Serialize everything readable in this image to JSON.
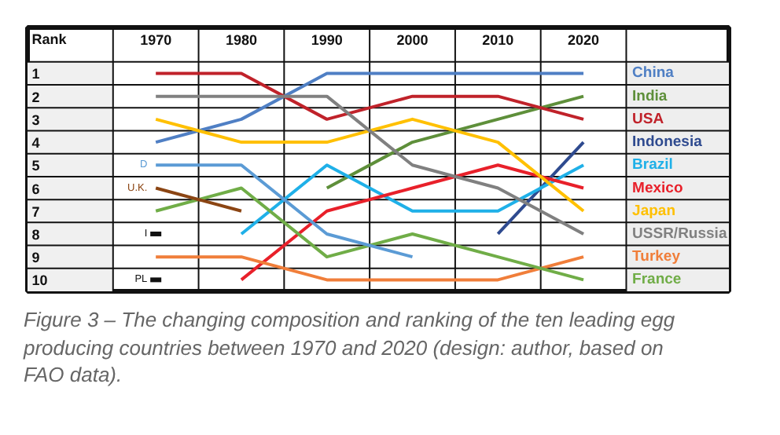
{
  "chart_data": {
    "type": "line",
    "ylabel": "Rank",
    "categories": [
      "1970",
      "1980",
      "1990",
      "2000",
      "2010",
      "2020"
    ],
    "ylim": [
      10.5,
      0.5
    ],
    "yticks": [
      1,
      2,
      3,
      4,
      5,
      6,
      7,
      8,
      9,
      10
    ],
    "grid": true,
    "legend": "right",
    "line_style": "solid",
    "series": [
      {
        "name": "China",
        "color": "#4f7fc4",
        "values": [
          4,
          3,
          1,
          1,
          1,
          1
        ]
      },
      {
        "name": "India",
        "color": "#5e8f3a",
        "values": [
          null,
          null,
          6,
          4,
          3,
          2
        ]
      },
      {
        "name": "USA",
        "color": "#c0222a",
        "values": [
          1,
          1,
          3,
          2,
          2,
          3
        ]
      },
      {
        "name": "Indonesia",
        "color": "#2e4a8f",
        "values": [
          null,
          null,
          null,
          null,
          8,
          4
        ]
      },
      {
        "name": "Brazil",
        "color": "#1fb0e8",
        "values": [
          null,
          8,
          5,
          7,
          7,
          5
        ]
      },
      {
        "name": "Mexico",
        "color": "#e8202a",
        "values": [
          null,
          10,
          7,
          6,
          5,
          6
        ]
      },
      {
        "name": "Japan",
        "color": "#ffc000",
        "values": [
          3,
          4,
          4,
          3,
          4,
          7
        ]
      },
      {
        "name": "USSR/Russia",
        "color": "#808080",
        "values": [
          2,
          2,
          2,
          5,
          6,
          8
        ]
      },
      {
        "name": "Turkey",
        "color": "#f07e3a",
        "values": [
          9,
          9,
          10,
          10,
          10,
          9
        ]
      },
      {
        "name": "France",
        "color": "#70ad47",
        "values": [
          7,
          6,
          9,
          8,
          9,
          10
        ]
      },
      {
        "name": "D",
        "color": "#5b9bd5",
        "values": [
          5,
          5,
          8,
          9,
          null,
          null
        ]
      },
      {
        "name": "U.K.",
        "color": "#8b4513",
        "values": [
          6,
          7,
          null,
          null,
          null,
          null
        ]
      },
      {
        "name": "I",
        "color": "#111111",
        "marker": "square",
        "values": [
          8,
          null,
          null,
          null,
          null,
          null
        ]
      },
      {
        "name": "PL",
        "color": "#111111",
        "marker": "square",
        "values": [
          10,
          null,
          null,
          null,
          null,
          null
        ]
      }
    ],
    "annotations": [
      "Figure 3 – The changing composition and ranking of the ten leading egg producing countries between 1970 and 2020 (design: author, based on FAO data)."
    ]
  }
}
